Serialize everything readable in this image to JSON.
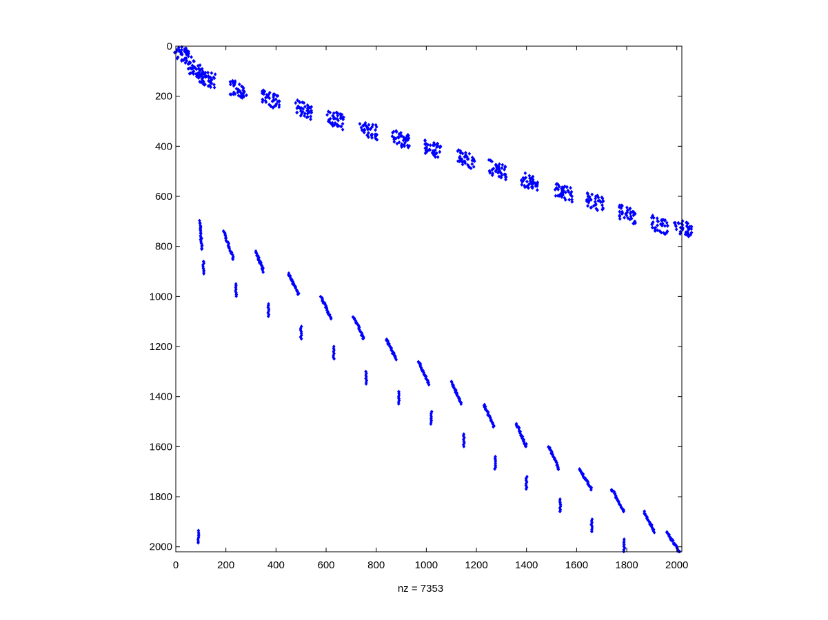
{
  "chart_data": {
    "type": "scatter",
    "title": "",
    "xlabel": "nz = 7353",
    "ylabel": "",
    "xlim": [
      0,
      2020
    ],
    "ylim": [
      0,
      2020
    ],
    "y_reversed": true,
    "grid": false,
    "legend": "none",
    "marker_color": "#0000ff",
    "x_ticks": [
      0,
      200,
      400,
      600,
      800,
      1000,
      1200,
      1400,
      1600,
      1800,
      2000
    ],
    "x_tick_labels": [
      "0",
      "200",
      "400",
      "600",
      "800",
      "1000",
      "1200",
      "1400",
      "1600",
      "1800",
      "2000"
    ],
    "y_ticks": [
      0,
      200,
      400,
      600,
      800,
      1000,
      1200,
      1400,
      1600,
      1800,
      2000
    ],
    "y_tick_labels": [
      "0",
      "200",
      "400",
      "600",
      "800",
      "1000",
      "1200",
      "1400",
      "1600",
      "1800",
      "2000"
    ],
    "upper_band_clusters": [
      [
        15,
        20
      ],
      [
        70,
        80
      ],
      [
        110,
        115
      ],
      [
        235,
        160
      ],
      [
        365,
        200
      ],
      [
        495,
        240
      ],
      [
        625,
        280
      ],
      [
        755,
        320
      ],
      [
        885,
        360
      ],
      [
        1015,
        400
      ],
      [
        1145,
        440
      ],
      [
        1270,
        480
      ],
      [
        1400,
        530
      ],
      [
        1535,
        570
      ],
      [
        1660,
        610
      ],
      [
        1790,
        660
      ],
      [
        1915,
        700
      ],
      [
        2010,
        715
      ]
    ],
    "lower_band_segments": [
      [
        [
          95,
          700
        ],
        [
          105,
          810
        ]
      ],
      [
        [
          190,
          740
        ],
        [
          230,
          850
        ]
      ],
      [
        [
          320,
          820
        ],
        [
          350,
          900
        ]
      ],
      [
        [
          450,
          910
        ],
        [
          490,
          990
        ]
      ],
      [
        [
          580,
          1000
        ],
        [
          620,
          1090
        ]
      ],
      [
        [
          710,
          1080
        ],
        [
          750,
          1170
        ]
      ],
      [
        [
          840,
          1170
        ],
        [
          880,
          1250
        ]
      ],
      [
        [
          970,
          1260
        ],
        [
          1010,
          1350
        ]
      ],
      [
        [
          1100,
          1340
        ],
        [
          1140,
          1430
        ]
      ],
      [
        [
          1230,
          1430
        ],
        [
          1270,
          1520
        ]
      ],
      [
        [
          1360,
          1510
        ],
        [
          1400,
          1600
        ]
      ],
      [
        [
          1490,
          1600
        ],
        [
          1530,
          1690
        ]
      ],
      [
        [
          1610,
          1690
        ],
        [
          1660,
          1770
        ]
      ],
      [
        [
          1740,
          1770
        ],
        [
          1790,
          1860
        ]
      ],
      [
        [
          1870,
          1860
        ],
        [
          1910,
          1940
        ]
      ],
      [
        [
          1960,
          1940
        ],
        [
          2010,
          2020
        ]
      ]
    ],
    "lower_band_offsets": [
      [
        110,
        880
      ],
      [
        240,
        970
      ],
      [
        370,
        1050
      ],
      [
        500,
        1140
      ],
      [
        630,
        1220
      ],
      [
        760,
        1320
      ],
      [
        890,
        1400
      ],
      [
        1020,
        1480
      ],
      [
        1150,
        1570
      ],
      [
        1275,
        1660
      ],
      [
        1400,
        1740
      ],
      [
        1535,
        1830
      ],
      [
        1660,
        1910
      ],
      [
        1790,
        1990
      ],
      [
        90,
        1955
      ]
    ]
  }
}
